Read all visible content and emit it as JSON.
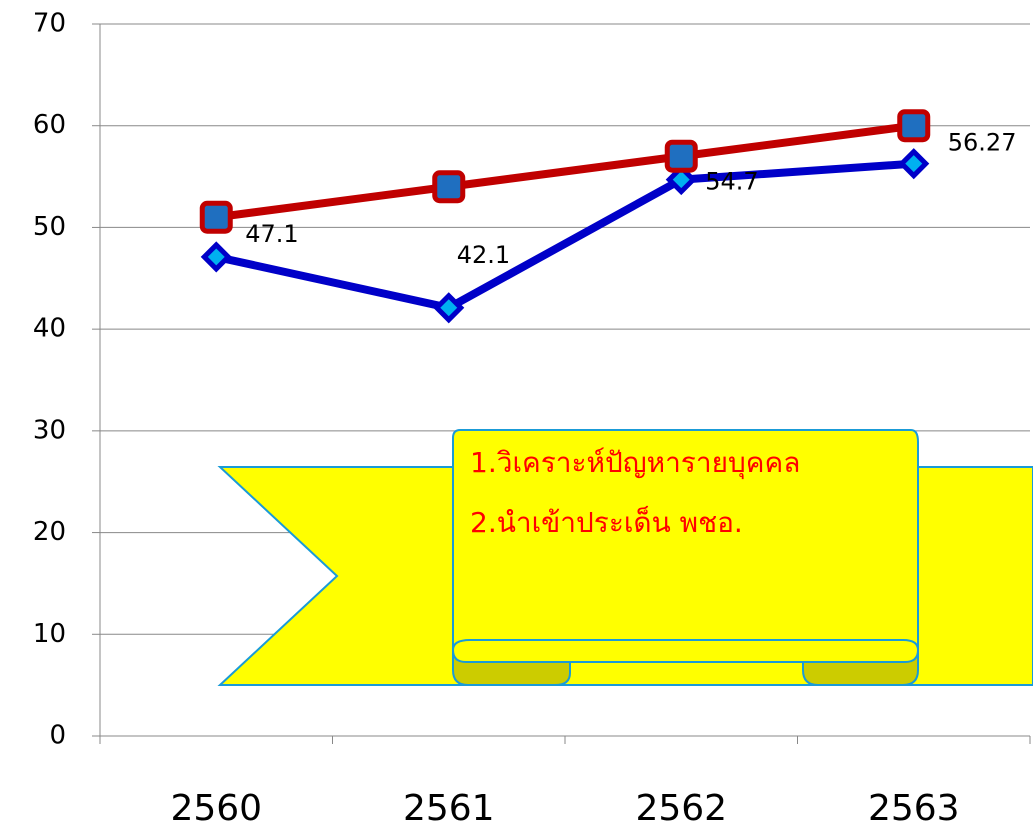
{
  "chart_data": {
    "type": "line",
    "categories": [
      "2560",
      "2561",
      "2562",
      "2563"
    ],
    "series": [
      {
        "color": "#0000c8",
        "values": [
          47.1,
          42.1,
          54.7,
          56.27
        ]
      },
      {
        "color": "#c00000",
        "values": [
          51,
          54,
          57,
          60
        ]
      }
    ],
    "data_labels": [
      true,
      false
    ],
    "ylim": [
      0,
      70
    ],
    "yticks": [
      0,
      10,
      20,
      30,
      40,
      50,
      60,
      70
    ],
    "grid": true,
    "annotations": [
      "1.วิเคราะห์ปัญหารายบุคคล",
      "2.นำเข้าประเด็น พชอ."
    ]
  }
}
